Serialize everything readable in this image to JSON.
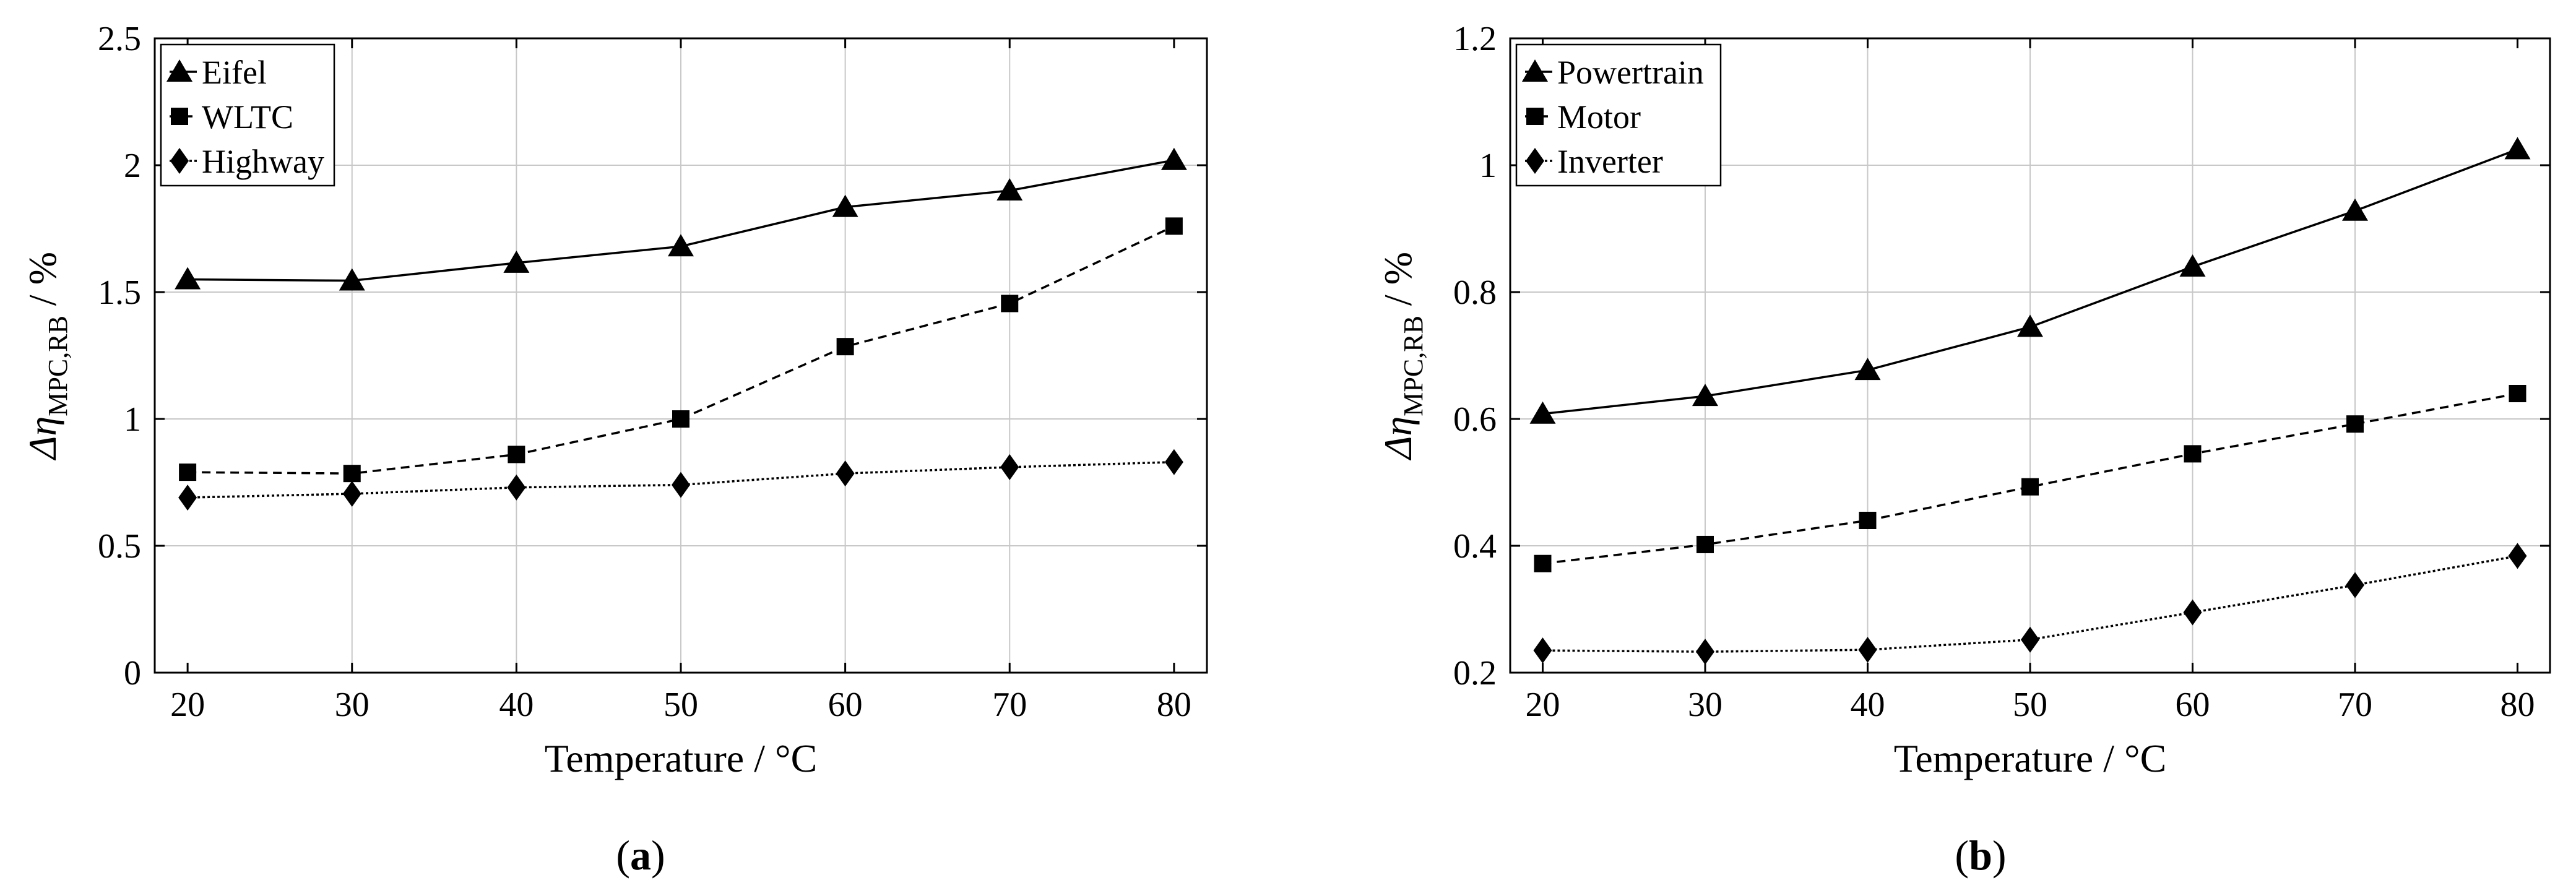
{
  "chart_data": [
    {
      "type": "line",
      "panel": "a",
      "title": "",
      "caption": "(a)",
      "caption_letter": "a",
      "xlabel": "Temperature / °C",
      "ylabel_prefix": "Δη",
      "ylabel_sub": "MPC,RB",
      "ylabel_suffix": " / %",
      "xlim": [
        18,
        82
      ],
      "ylim": [
        0,
        2.5
      ],
      "xticks": [
        20,
        30,
        40,
        50,
        60,
        70,
        80
      ],
      "xtick_labels": [
        "20",
        "30",
        "40",
        "50",
        "60",
        "70",
        "80"
      ],
      "yticks": [
        0,
        0.5,
        1,
        1.5,
        2,
        2.5
      ],
      "ytick_labels": [
        "0",
        "0.5",
        "1",
        "1.5",
        "2",
        "2.5"
      ],
      "legend_position": "top-left",
      "x": [
        20,
        30,
        40,
        50,
        60,
        70,
        80
      ],
      "series": [
        {
          "name": "Eifel",
          "marker": "triangle",
          "line": "solid",
          "values": [
            1.55,
            1.545,
            1.615,
            1.68,
            1.835,
            1.9,
            2.02
          ]
        },
        {
          "name": "WLTC",
          "marker": "square",
          "line": "dashed",
          "values": [
            0.79,
            0.785,
            0.86,
            1.0,
            1.285,
            1.455,
            1.76
          ]
        },
        {
          "name": "Highway",
          "marker": "diamond",
          "line": "dotted",
          "values": [
            0.69,
            0.705,
            0.73,
            0.74,
            0.785,
            0.81,
            0.83
          ]
        }
      ]
    },
    {
      "type": "line",
      "panel": "b",
      "title": "",
      "caption": "(b)",
      "caption_letter": "b",
      "xlabel": "Temperature / °C",
      "ylabel_prefix": "Δη",
      "ylabel_sub": "MPC,RB",
      "ylabel_suffix": " / %",
      "xlim": [
        18,
        82
      ],
      "ylim": [
        0.2,
        1.2
      ],
      "xticks": [
        20,
        30,
        40,
        50,
        60,
        70,
        80
      ],
      "xtick_labels": [
        "20",
        "30",
        "40",
        "50",
        "60",
        "70",
        "80"
      ],
      "yticks": [
        0.2,
        0.4,
        0.6,
        0.8,
        1.0,
        1.2
      ],
      "ytick_labels": [
        "0.2",
        "0.4",
        "0.6",
        "0.8",
        "1",
        "1.2"
      ],
      "legend_position": "top-left",
      "x": [
        20,
        30,
        40,
        50,
        60,
        70,
        80
      ],
      "series": [
        {
          "name": "Powertrain",
          "marker": "triangle",
          "line": "solid",
          "values": [
            0.608,
            0.636,
            0.677,
            0.745,
            0.84,
            0.928,
            1.025
          ]
        },
        {
          "name": "Motor",
          "marker": "square",
          "line": "dashed",
          "values": [
            0.372,
            0.402,
            0.44,
            0.493,
            0.545,
            0.592,
            0.64
          ]
        },
        {
          "name": "Inverter",
          "marker": "diamond",
          "line": "dotted",
          "values": [
            0.235,
            0.233,
            0.236,
            0.252,
            0.295,
            0.338,
            0.384
          ]
        }
      ]
    }
  ]
}
